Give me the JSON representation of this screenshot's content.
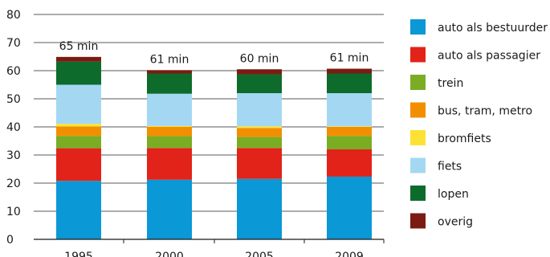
{
  "chart_data": {
    "type": "bar",
    "stacked": true,
    "categories": [
      "1995",
      "2000",
      "2005",
      "2009"
    ],
    "ylim": [
      0,
      80
    ],
    "yticks": [
      0,
      10,
      20,
      30,
      40,
      50,
      60,
      70,
      80
    ],
    "grid": true,
    "legend_position": "right",
    "totals": [
      "65 min",
      "61 min",
      "60 min",
      "61 min"
    ],
    "series": [
      {
        "name": "auto als bestuurder",
        "color": "#0a98d6",
        "values": [
          20.8,
          21.2,
          21.5,
          22.3
        ]
      },
      {
        "name": "auto als passagier",
        "color": "#e2231a",
        "values": [
          11.6,
          11.3,
          11.0,
          9.7
        ]
      },
      {
        "name": "trein",
        "color": "#7aad24",
        "values": [
          4.4,
          4.2,
          3.9,
          4.8
        ]
      },
      {
        "name": "bus, tram, metro",
        "color": "#f28f00",
        "values": [
          3.3,
          3.3,
          3.2,
          3.2
        ]
      },
      {
        "name": "bromfiets",
        "color": "#fde235",
        "values": [
          1.0,
          0.3,
          0.6,
          0.2
        ]
      },
      {
        "name": "fiets",
        "color": "#a4d8f2",
        "values": [
          13.9,
          11.5,
          11.8,
          11.8
        ]
      },
      {
        "name": "lopen",
        "color": "#0d6b2c",
        "values": [
          8.2,
          7.2,
          6.7,
          7.0
        ]
      },
      {
        "name": "overig",
        "color": "#7a1c12",
        "values": [
          1.7,
          1.2,
          1.8,
          1.7
        ]
      }
    ]
  }
}
